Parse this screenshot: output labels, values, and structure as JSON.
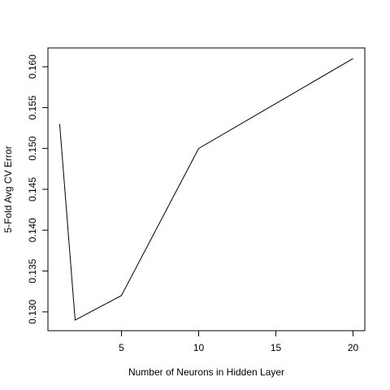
{
  "chart_data": {
    "type": "line",
    "title": "",
    "xlabel": "Number of Neurons in Hidden Layer",
    "ylabel": "5-Fold Avg CV Error",
    "x": [
      1,
      2,
      5,
      10,
      20
    ],
    "y": [
      0.153,
      0.129,
      0.132,
      0.15,
      0.161
    ],
    "xlim": [
      0.24,
      20.76
    ],
    "ylim": [
      0.1277,
      0.1623
    ],
    "xticks": [
      5,
      10,
      15,
      20
    ],
    "yticks": [
      0.13,
      0.135,
      0.14,
      0.145,
      0.15,
      0.155,
      0.16
    ],
    "xtick_labels": [
      "5",
      "10",
      "15",
      "20"
    ],
    "ytick_labels": [
      "0.130",
      "0.135",
      "0.140",
      "0.145",
      "0.150",
      "0.155",
      "0.160"
    ],
    "grid": false,
    "line_color": "#000000"
  }
}
